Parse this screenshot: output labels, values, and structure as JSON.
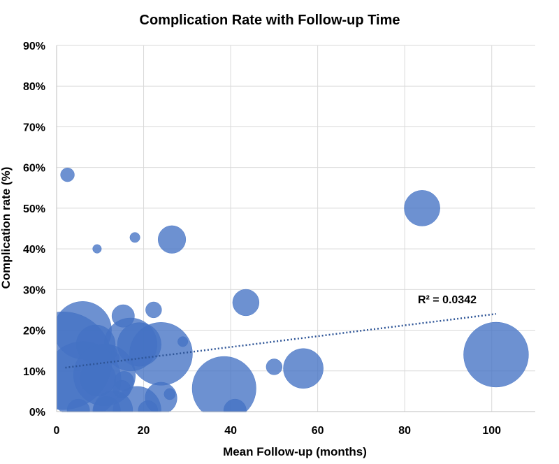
{
  "chart_data": {
    "type": "bubble",
    "title": "Complication Rate with Follow-up Time",
    "xlabel": "Mean Follow-up (months)",
    "ylabel": "Complication rate (%)",
    "xlim": [
      0,
      110
    ],
    "ylim": [
      0,
      90
    ],
    "x_ticks": [
      0,
      20,
      40,
      60,
      80,
      100
    ],
    "y_ticks": [
      0,
      10,
      20,
      30,
      40,
      50,
      60,
      70,
      80,
      90
    ],
    "x_tick_labels": [
      "0",
      "20",
      "40",
      "60",
      "80",
      "100"
    ],
    "y_tick_labels": [
      "0%",
      "10%",
      "20%",
      "30%",
      "40%",
      "50%",
      "60%",
      "70%",
      "80%",
      "90%"
    ],
    "grid": true,
    "bubble_color": "#4472C4",
    "trendline_color": "#2E5597",
    "trendline": {
      "type": "linear",
      "x": [
        2,
        101
      ],
      "y": [
        10.8,
        24.0
      ],
      "r_squared_label": "R² = 0.0342"
    },
    "points": [
      {
        "x": 2.5,
        "y": 58.2,
        "size": 0.15
      },
      {
        "x": 9.3,
        "y": 40.0,
        "size": 0.06
      },
      {
        "x": 18.0,
        "y": 42.8,
        "size": 0.08
      },
      {
        "x": 26.5,
        "y": 42.3,
        "size": 0.6
      },
      {
        "x": 84.0,
        "y": 50.0,
        "size": 1.0
      },
      {
        "x": 43.5,
        "y": 26.8,
        "size": 0.55
      },
      {
        "x": 22.3,
        "y": 25.0,
        "size": 0.2
      },
      {
        "x": 15.3,
        "y": 23.5,
        "size": 0.4
      },
      {
        "x": 6.0,
        "y": 20.0,
        "size": 2.6
      },
      {
        "x": 9.0,
        "y": 16.5,
        "size": 1.2
      },
      {
        "x": 17.0,
        "y": 16.5,
        "size": 2.2
      },
      {
        "x": 19.0,
        "y": 16.5,
        "size": 1.5
      },
      {
        "x": 24.0,
        "y": 14.2,
        "size": 3.1
      },
      {
        "x": 29.0,
        "y": 17.2,
        "size": 0.08
      },
      {
        "x": 12.0,
        "y": 14.5,
        "size": 0.2
      },
      {
        "x": 13.0,
        "y": 13.2,
        "size": 0.12
      },
      {
        "x": 1.5,
        "y": 12.5,
        "size": 7.5
      },
      {
        "x": 6.0,
        "y": 7.8,
        "size": 4.6
      },
      {
        "x": 11.0,
        "y": 9.0,
        "size": 3.0
      },
      {
        "x": 9.5,
        "y": 8.2,
        "size": 1.0
      },
      {
        "x": 15.5,
        "y": 7.5,
        "size": 0.3
      },
      {
        "x": 15.0,
        "y": 5.5,
        "size": 0.25
      },
      {
        "x": 50.0,
        "y": 11.0,
        "size": 0.2
      },
      {
        "x": 56.7,
        "y": 10.6,
        "size": 1.25
      },
      {
        "x": 101.0,
        "y": 14.0,
        "size": 3.3
      },
      {
        "x": 38.5,
        "y": 5.7,
        "size": 3.2
      },
      {
        "x": 24.0,
        "y": 3.3,
        "size": 0.8
      },
      {
        "x": 26.0,
        "y": 4.3,
        "size": 0.1
      },
      {
        "x": 18.5,
        "y": 0.3,
        "size": 1.8
      },
      {
        "x": 13.0,
        "y": 0.3,
        "size": 1.2
      },
      {
        "x": 21.0,
        "y": 0.3,
        "size": 0.3
      },
      {
        "x": 41.0,
        "y": 0.3,
        "size": 0.4
      },
      {
        "x": 5.0,
        "y": 0.3,
        "size": 0.4
      },
      {
        "x": 11.5,
        "y": 0.3,
        "size": 0.6
      }
    ]
  }
}
